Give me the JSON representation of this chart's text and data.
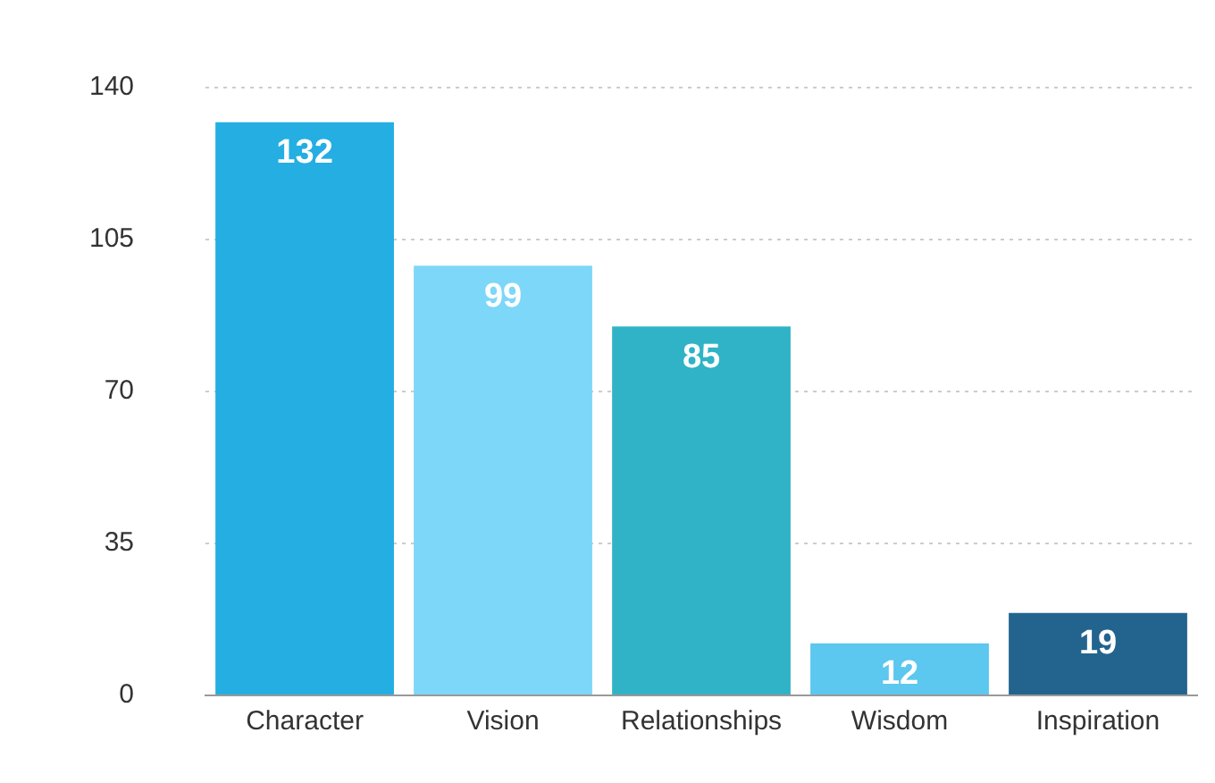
{
  "chart_data": {
    "type": "bar",
    "categories": [
      "Character",
      "Vision",
      "Relationships",
      "Wisdom",
      "Inspiration"
    ],
    "values": [
      132,
      99,
      85,
      12,
      19
    ],
    "colors": [
      "#24aee2",
      "#7dd7f8",
      "#30b3c6",
      "#5cc7ef",
      "#23648f"
    ],
    "ylim": [
      0,
      140
    ],
    "yticks": [
      0,
      35,
      70,
      105,
      140
    ],
    "grid": "y",
    "data_labels": true,
    "legend": false
  }
}
